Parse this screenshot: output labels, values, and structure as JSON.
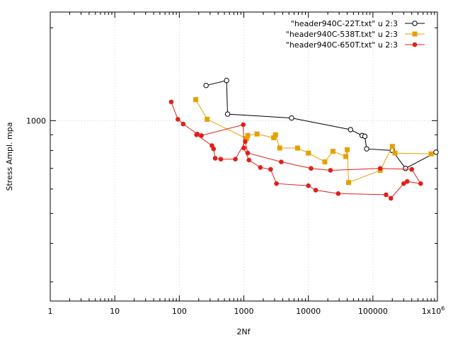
{
  "chart_data": {
    "type": "line",
    "xlabel": "2Nf",
    "ylabel": "Stress Ampl. mpa",
    "x_scale": "log",
    "y_scale": "log",
    "xlim": [
      1,
      1000000
    ],
    "ylim": [
      260,
      2250
    ],
    "x_ticks": [
      1,
      10,
      100,
      1000,
      10000,
      100000,
      1000000
    ],
    "x_tick_labels": [
      "1",
      "10",
      "100",
      "1000",
      "10000",
      "100000",
      "1x10^6"
    ],
    "y_ticks": [
      1000
    ],
    "y_tick_labels": [
      "1000"
    ],
    "grid": true,
    "legend_position": "top-right",
    "series": [
      {
        "name": "\"header940C-22T.txt\" u 2:3",
        "color": "#000000",
        "marker": "open-circle",
        "points": [
          [
            260,
            1300
          ],
          [
            540,
            1350
          ],
          [
            560,
            1050
          ],
          [
            5500,
            1020
          ],
          [
            45000,
            935
          ],
          [
            68000,
            895
          ],
          [
            75000,
            890
          ],
          [
            80000,
            810
          ],
          [
            200000,
            800
          ],
          [
            320000,
            700
          ],
          [
            950000,
            790
          ]
        ]
      },
      {
        "name": "\"header940C-538T.txt\" u 2:3",
        "color": "#e6a000",
        "marker": "filled-square",
        "points": [
          [
            180,
            1170
          ],
          [
            270,
            1010
          ],
          [
            1100,
            875
          ],
          [
            1150,
            895
          ],
          [
            1600,
            905
          ],
          [
            2900,
            880
          ],
          [
            3100,
            900
          ],
          [
            3600,
            815
          ],
          [
            6800,
            815
          ],
          [
            10000,
            785
          ],
          [
            18000,
            735
          ],
          [
            24000,
            795
          ],
          [
            38000,
            765
          ],
          [
            40000,
            805
          ],
          [
            42000,
            630
          ],
          [
            130000,
            690
          ],
          [
            200000,
            825
          ],
          [
            220000,
            785
          ],
          [
            800000,
            780
          ]
        ]
      },
      {
        "name": "\"header940C-650T.txt\" u 2:3",
        "color": "#e0201b",
        "marker": "filled-circle",
        "points": [
          [
            75,
            1150
          ],
          [
            95,
            1010
          ],
          [
            115,
            975
          ],
          [
            190,
            905
          ],
          [
            220,
            895
          ],
          [
            980,
            970
          ],
          [
            1000,
            815
          ],
          [
            1200,
            745
          ],
          [
            1800,
            705
          ],
          [
            2600,
            695
          ],
          [
            3200,
            625
          ],
          [
            10000,
            615
          ],
          [
            13000,
            595
          ],
          [
            29000,
            580
          ],
          [
            160000,
            575
          ],
          [
            190000,
            560
          ],
          [
            300000,
            625
          ],
          [
            340000,
            635
          ],
          [
            550000,
            625
          ],
          [
            400000,
            695
          ],
          [
            130000,
            700
          ],
          [
            22000,
            690
          ],
          [
            11000,
            700
          ],
          [
            3800,
            735
          ],
          [
            1150,
            785
          ],
          [
            1050,
            855
          ],
          [
            740,
            750
          ],
          [
            440,
            750
          ],
          [
            360,
            755
          ],
          [
            340,
            810
          ],
          [
            320,
            830
          ],
          [
            185,
            900
          ]
        ]
      }
    ]
  }
}
